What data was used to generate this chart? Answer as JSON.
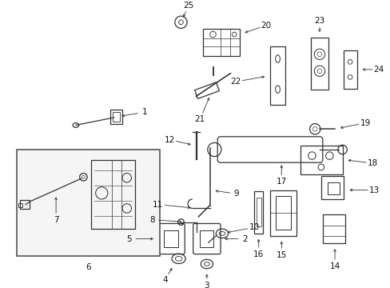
{
  "background_color": "#ffffff",
  "line_color": "#333333",
  "label_color": "#111111",
  "lw": 0.9,
  "fig_w": 4.89,
  "fig_h": 3.6,
  "dpi": 100
}
